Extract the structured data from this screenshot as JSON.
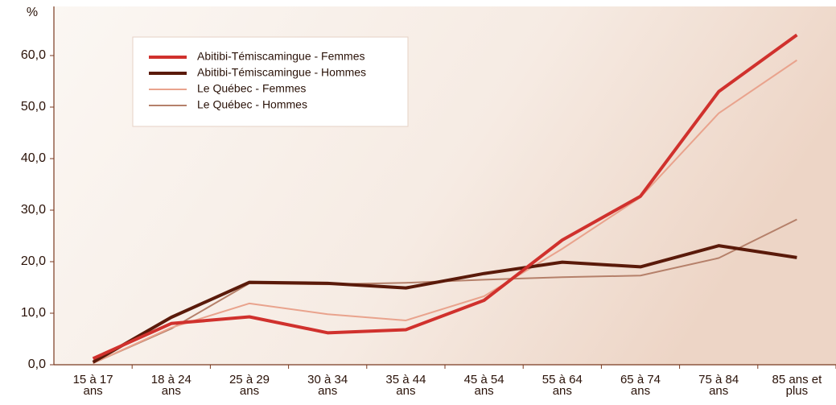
{
  "chart_data": {
    "type": "line",
    "y_label": "%",
    "categories": [
      "15 à 17 ans",
      "18 à 24 ans",
      "25 à 29 ans",
      "30 à 34 ans",
      "35 à 44 ans",
      "45 à 54 ans",
      "55 à 64 ans",
      "65 à 74 ans",
      "75 à 84 ans",
      "85 ans et plus"
    ],
    "series": [
      {
        "name": "Abitibi-Témiscamingue - Femmes",
        "color": "#d0312d",
        "width": 4,
        "values": [
          1.2,
          8.0,
          9.3,
          6.2,
          6.8,
          12.5,
          24.2,
          32.7,
          53.0,
          64.0
        ]
      },
      {
        "name": "Abitibi-Témiscamingue - Hommes",
        "color": "#5a1a0a",
        "width": 4,
        "values": [
          0.5,
          9.2,
          16.0,
          15.8,
          14.9,
          17.7,
          19.9,
          19.0,
          23.1,
          20.8
        ]
      },
      {
        "name": "Le Québec - Femmes",
        "color": "#e9a38d",
        "width": 2,
        "values": [
          0.3,
          7.2,
          11.9,
          9.8,
          8.6,
          13.3,
          22.5,
          32.5,
          48.8,
          59.1
        ]
      },
      {
        "name": "Le Québec - Hommes",
        "color": "#b5806a",
        "width": 2,
        "values": [
          0.3,
          7.0,
          15.8,
          15.6,
          15.9,
          16.5,
          17.0,
          17.3,
          20.7,
          28.2
        ]
      }
    ],
    "ylim": [
      0,
      70
    ],
    "yticks": [
      {
        "value": 0,
        "label": "0,0"
      },
      {
        "value": 10,
        "label": "10,0"
      },
      {
        "value": 20,
        "label": "20,0"
      },
      {
        "value": 30,
        "label": "30,0"
      },
      {
        "value": 40,
        "label": "40,0"
      },
      {
        "value": 50,
        "label": "50,0"
      },
      {
        "value": 60,
        "label": "60,0"
      }
    ],
    "legend": "upper left"
  }
}
